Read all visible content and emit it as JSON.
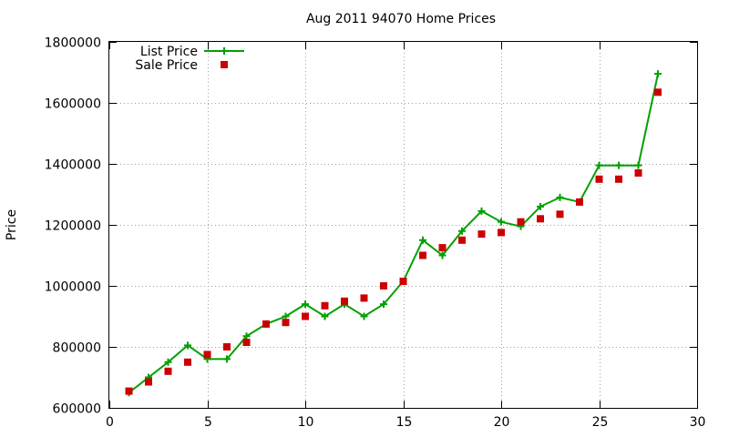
{
  "chart_data": {
    "type": "line",
    "title": "Aug 2011 94070 Home Prices",
    "xlabel": "",
    "ylabel": "Price",
    "xlim": [
      0,
      30
    ],
    "ylim": [
      600000,
      1800000
    ],
    "xticks": [
      0,
      5,
      10,
      15,
      20,
      25,
      30
    ],
    "yticks": [
      600000,
      800000,
      1000000,
      1200000,
      1400000,
      1600000,
      1800000
    ],
    "grid": true,
    "legend_position": "top-left",
    "series": [
      {
        "name": "List Price",
        "style": "line+cross",
        "color": "#00a000",
        "x": [
          1,
          2,
          3,
          4,
          5,
          6,
          7,
          8,
          9,
          10,
          11,
          12,
          13,
          14,
          15,
          16,
          17,
          18,
          19,
          20,
          21,
          22,
          23,
          24,
          25,
          26,
          27,
          28
        ],
        "y": [
          650000,
          700000,
          750000,
          805000,
          760000,
          760000,
          835000,
          875000,
          900000,
          940000,
          900000,
          940000,
          900000,
          940000,
          1015000,
          1150000,
          1100000,
          1180000,
          1245000,
          1210000,
          1195000,
          1260000,
          1290000,
          1275000,
          1395000,
          1395000,
          1395000,
          1695000
        ]
      },
      {
        "name": "Sale Price",
        "style": "square",
        "color": "#cc0000",
        "x": [
          1,
          2,
          3,
          4,
          5,
          6,
          7,
          8,
          9,
          10,
          11,
          12,
          13,
          14,
          15,
          16,
          17,
          18,
          19,
          20,
          21,
          22,
          23,
          24,
          25,
          26,
          27,
          28
        ],
        "y": [
          655000,
          685000,
          720000,
          750000,
          775000,
          800000,
          815000,
          875000,
          880000,
          900000,
          935000,
          950000,
          960000,
          1000000,
          1015000,
          1100000,
          1125000,
          1150000,
          1170000,
          1175000,
          1210000,
          1220000,
          1235000,
          1275000,
          1350000,
          1350000,
          1370000,
          1635000
        ]
      }
    ]
  }
}
